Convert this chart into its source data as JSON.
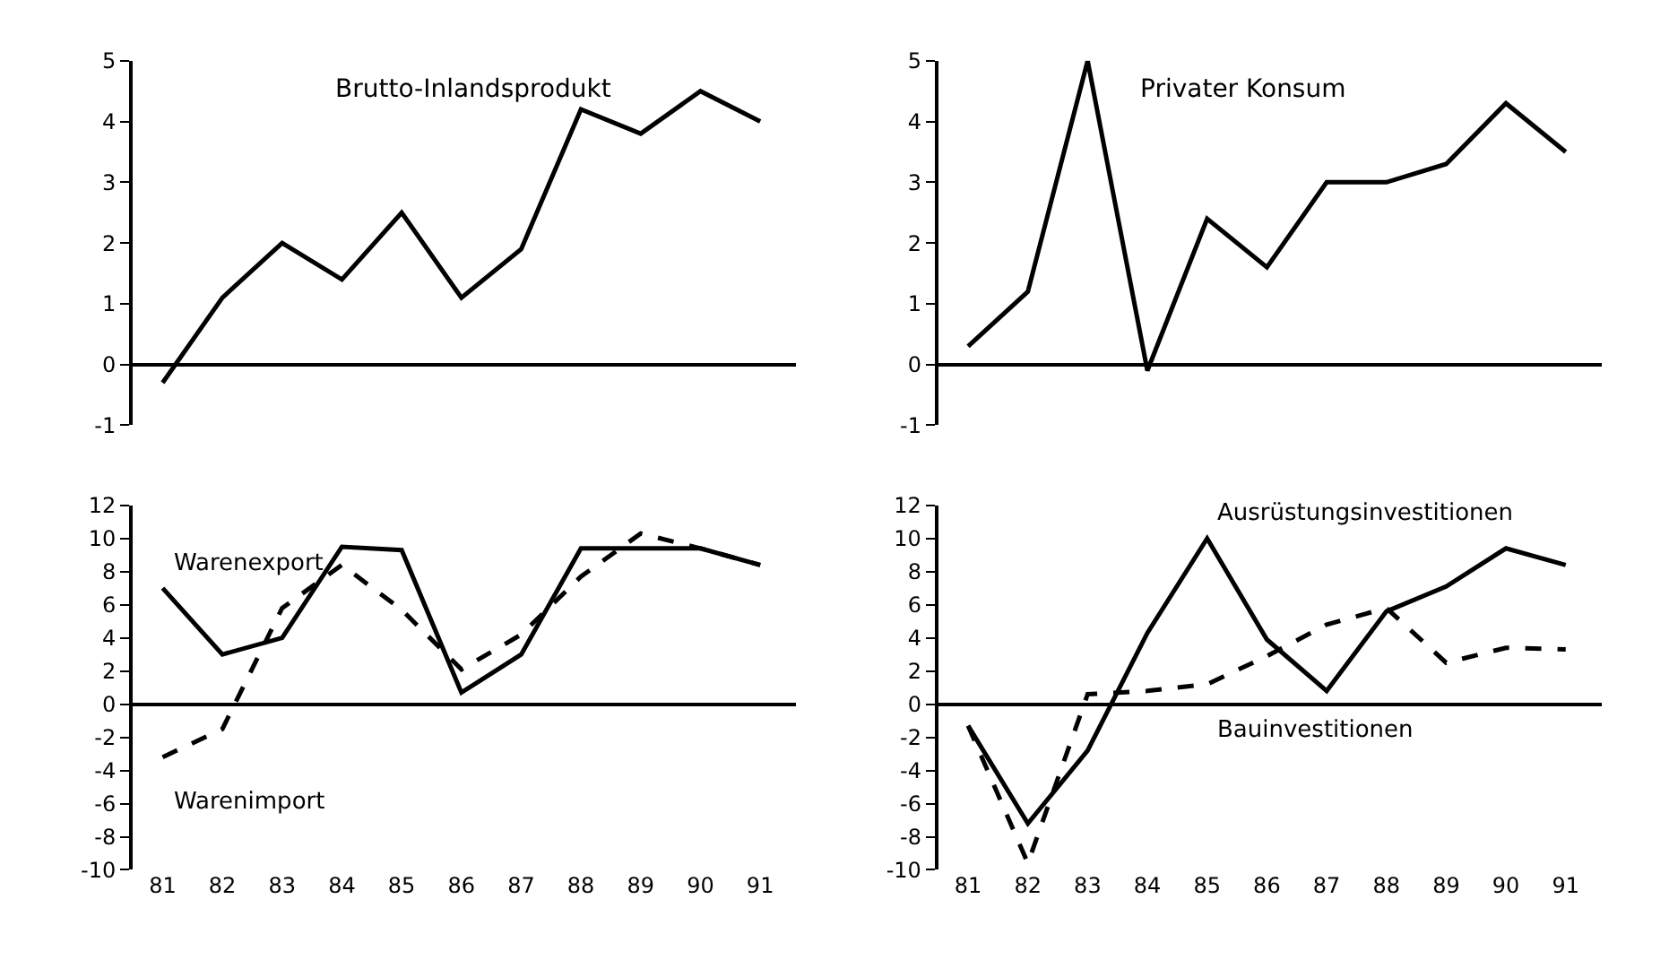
{
  "chart_data": [
    {
      "type": "line",
      "title": "Brutto-Inlandsprodukt",
      "x": [
        81,
        82,
        83,
        84,
        85,
        86,
        87,
        88,
        89,
        90,
        91
      ],
      "xlim": [
        80.5,
        91.6
      ],
      "xticks": [
        81,
        82,
        83,
        84,
        85,
        86,
        87,
        88,
        89,
        90,
        91
      ],
      "ylim": [
        -1,
        5
      ],
      "yticks": [
        -1,
        0,
        1,
        2,
        3,
        4,
        5
      ],
      "tick_labels": "y",
      "series": [
        {
          "color": "#000000",
          "line_style": "solid",
          "values": [
            -0.3,
            1.1,
            2.0,
            1.4,
            2.5,
            1.1,
            1.9,
            4.2,
            3.8,
            4.5,
            4.0
          ]
        }
      ]
    },
    {
      "type": "line",
      "title": "Privater Konsum",
      "x": [
        81,
        82,
        83,
        84,
        85,
        86,
        87,
        88,
        89,
        90,
        91
      ],
      "xlim": [
        80.5,
        91.6
      ],
      "xticks": [
        81,
        82,
        83,
        84,
        85,
        86,
        87,
        88,
        89,
        90,
        91
      ],
      "ylim": [
        -1,
        5
      ],
      "yticks": [
        -1,
        0,
        1,
        2,
        3,
        4,
        5
      ],
      "tick_labels": "y",
      "series": [
        {
          "color": "#000000",
          "line_style": "solid",
          "values": [
            0.3,
            1.2,
            5.0,
            -0.1,
            2.4,
            1.6,
            3.0,
            3.0,
            3.3,
            4.3,
            3.5
          ]
        }
      ]
    },
    {
      "type": "line",
      "x": [
        81,
        82,
        83,
        84,
        85,
        86,
        87,
        88,
        89,
        90,
        91
      ],
      "xlim": [
        80.5,
        91.6
      ],
      "xticks": [
        81,
        82,
        83,
        84,
        85,
        86,
        87,
        88,
        89,
        90,
        91
      ],
      "ylim": [
        -10,
        12
      ],
      "yticks": [
        -10,
        -8,
        -6,
        -4,
        -2,
        0,
        2,
        4,
        6,
        8,
        10,
        12
      ],
      "series": [
        {
          "name": "Warenexport",
          "color": "#000000",
          "line_style": "solid",
          "values": [
            7.0,
            3.0,
            4.0,
            9.5,
            9.3,
            0.7,
            3.0,
            9.4,
            9.4,
            9.4,
            8.4
          ]
        },
        {
          "name": "Warenimport",
          "color": "#000000",
          "line_style": "dashed",
          "values": [
            -3.2,
            -1.5,
            5.8,
            8.4,
            5.7,
            2.1,
            4.2,
            7.7,
            10.3,
            9.4,
            8.4
          ]
        }
      ]
    },
    {
      "type": "line",
      "x": [
        81,
        82,
        83,
        84,
        85,
        86,
        87,
        88,
        89,
        90,
        91
      ],
      "xlim": [
        80.5,
        91.6
      ],
      "xticks": [
        81,
        82,
        83,
        84,
        85,
        86,
        87,
        88,
        89,
        90,
        91
      ],
      "ylim": [
        -10,
        12
      ],
      "yticks": [
        -10,
        -8,
        -6,
        -4,
        -2,
        0,
        2,
        4,
        6,
        8,
        10,
        12
      ],
      "series": [
        {
          "name": "Ausrüstungsinvestitionen",
          "color": "#000000",
          "line_style": "solid",
          "values": [
            -1.3,
            -7.2,
            -2.8,
            4.3,
            10.0,
            3.9,
            0.8,
            5.6,
            7.1,
            9.4,
            8.4
          ]
        },
        {
          "name": "Bauinvestitionen",
          "color": "#000000",
          "line_style": "dashed",
          "values": [
            -1.3,
            -9.6,
            0.6,
            0.8,
            1.2,
            2.9,
            4.8,
            5.8,
            2.5,
            3.4,
            3.3
          ]
        }
      ]
    }
  ]
}
